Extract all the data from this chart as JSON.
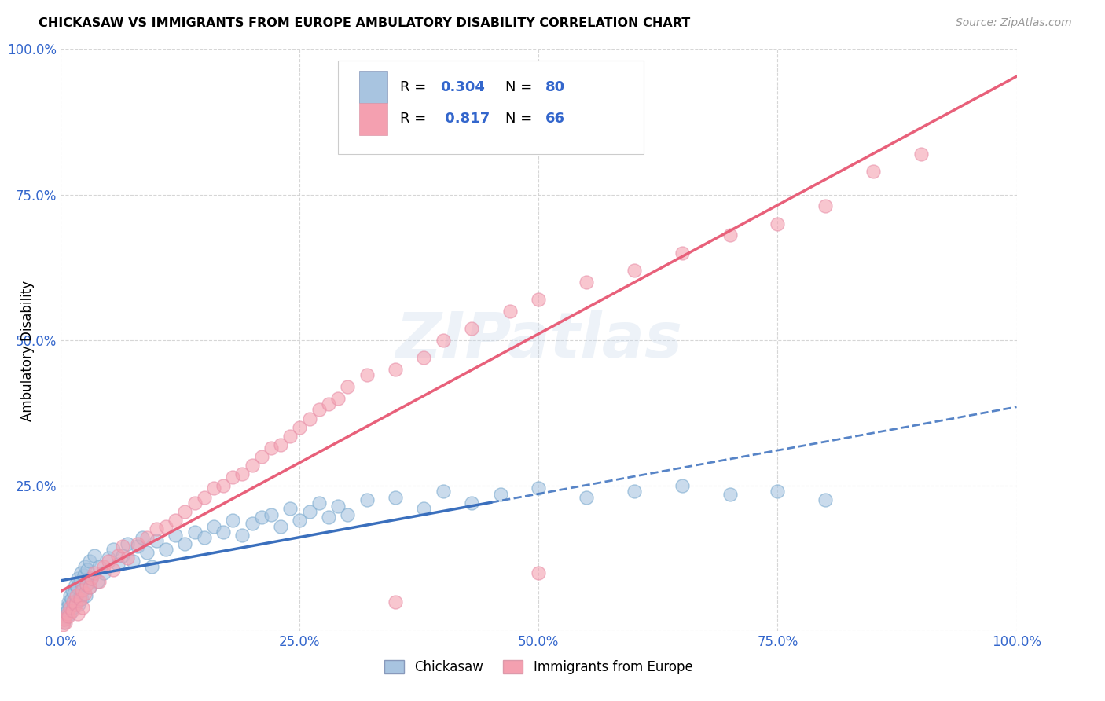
{
  "title": "CHICKASAW VS IMMIGRANTS FROM EUROPE AMBULATORY DISABILITY CORRELATION CHART",
  "source": "Source: ZipAtlas.com",
  "ylabel": "Ambulatory Disability",
  "xlim": [
    0,
    100
  ],
  "ylim": [
    0,
    100
  ],
  "xticks": [
    0,
    25,
    50,
    75,
    100
  ],
  "yticks": [
    0,
    25,
    50,
    75,
    100
  ],
  "xticklabels": [
    "0.0%",
    "25.0%",
    "50.0%",
    "75.0%",
    "100.0%"
  ],
  "yticklabels": [
    "",
    "25.0%",
    "50.0%",
    "75.0%",
    "100.0%"
  ],
  "chickasaw_color": "#a8c4e0",
  "europe_color": "#f4a0b0",
  "chickasaw_line_color": "#3a6fbd",
  "europe_line_color": "#e8607a",
  "R_chickasaw": 0.304,
  "N_chickasaw": 80,
  "R_europe": 0.817,
  "N_europe": 66,
  "legend_labels": [
    "Chickasaw",
    "Immigrants from Europe"
  ],
  "watermark": "ZIPatlas",
  "chickasaw_x": [
    0.2,
    0.3,
    0.4,
    0.5,
    0.6,
    0.7,
    0.8,
    0.9,
    1.0,
    1.0,
    1.1,
    1.2,
    1.3,
    1.4,
    1.5,
    1.6,
    1.7,
    1.8,
    1.9,
    2.0,
    2.0,
    2.1,
    2.2,
    2.3,
    2.4,
    2.5,
    2.6,
    2.7,
    2.8,
    3.0,
    3.0,
    3.2,
    3.5,
    3.8,
    4.0,
    4.5,
    5.0,
    5.5,
    6.0,
    6.5,
    7.0,
    7.5,
    8.0,
    8.5,
    9.0,
    9.5,
    10.0,
    11.0,
    12.0,
    13.0,
    14.0,
    15.0,
    16.0,
    17.0,
    18.0,
    19.0,
    20.0,
    21.0,
    22.0,
    23.0,
    24.0,
    25.0,
    26.0,
    27.0,
    28.0,
    29.0,
    30.0,
    32.0,
    35.0,
    38.0,
    40.0,
    43.0,
    46.0,
    50.0,
    55.0,
    60.0,
    65.0,
    70.0,
    75.0,
    80.0
  ],
  "chickasaw_y": [
    2.0,
    1.5,
    3.0,
    2.5,
    4.0,
    3.5,
    5.0,
    4.5,
    6.0,
    3.0,
    5.5,
    7.0,
    4.0,
    6.5,
    8.0,
    5.0,
    7.5,
    9.0,
    4.5,
    6.0,
    8.5,
    10.0,
    5.5,
    7.0,
    9.5,
    11.0,
    6.0,
    8.0,
    10.5,
    7.5,
    12.0,
    9.0,
    13.0,
    8.5,
    11.0,
    10.0,
    12.5,
    14.0,
    11.5,
    13.0,
    15.0,
    12.0,
    14.5,
    16.0,
    13.5,
    11.0,
    15.5,
    14.0,
    16.5,
    15.0,
    17.0,
    16.0,
    18.0,
    17.0,
    19.0,
    16.5,
    18.5,
    19.5,
    20.0,
    18.0,
    21.0,
    19.0,
    20.5,
    22.0,
    19.5,
    21.5,
    20.0,
    22.5,
    23.0,
    21.0,
    24.0,
    22.0,
    23.5,
    24.5,
    23.0,
    24.0,
    25.0,
    23.5,
    24.0,
    22.5
  ],
  "europe_x": [
    0.2,
    0.4,
    0.5,
    0.7,
    0.8,
    1.0,
    1.2,
    1.3,
    1.5,
    1.6,
    1.8,
    2.0,
    2.2,
    2.3,
    2.5,
    2.7,
    3.0,
    3.2,
    3.5,
    4.0,
    4.5,
    5.0,
    5.5,
    6.0,
    6.5,
    7.0,
    8.0,
    9.0,
    10.0,
    11.0,
    12.0,
    13.0,
    14.0,
    15.0,
    16.0,
    17.0,
    18.0,
    19.0,
    20.0,
    21.0,
    22.0,
    23.0,
    24.0,
    25.0,
    26.0,
    27.0,
    28.0,
    29.0,
    30.0,
    32.0,
    35.0,
    38.0,
    40.0,
    43.0,
    47.0,
    50.0,
    55.0,
    60.0,
    65.0,
    70.0,
    75.0,
    80.0,
    85.0,
    90.0,
    50.0,
    35.0
  ],
  "europe_y": [
    1.0,
    2.0,
    1.5,
    3.0,
    2.5,
    4.0,
    3.5,
    5.0,
    4.5,
    6.0,
    3.0,
    5.5,
    7.0,
    4.0,
    6.5,
    8.0,
    7.5,
    9.0,
    10.0,
    8.5,
    11.0,
    12.0,
    10.5,
    13.0,
    14.5,
    12.5,
    15.0,
    16.0,
    17.5,
    18.0,
    19.0,
    20.5,
    22.0,
    23.0,
    24.5,
    25.0,
    26.5,
    27.0,
    28.5,
    30.0,
    31.5,
    32.0,
    33.5,
    35.0,
    36.5,
    38.0,
    39.0,
    40.0,
    42.0,
    44.0,
    45.0,
    47.0,
    50.0,
    52.0,
    55.0,
    57.0,
    60.0,
    62.0,
    65.0,
    68.0,
    70.0,
    73.0,
    79.0,
    82.0,
    10.0,
    5.0
  ]
}
